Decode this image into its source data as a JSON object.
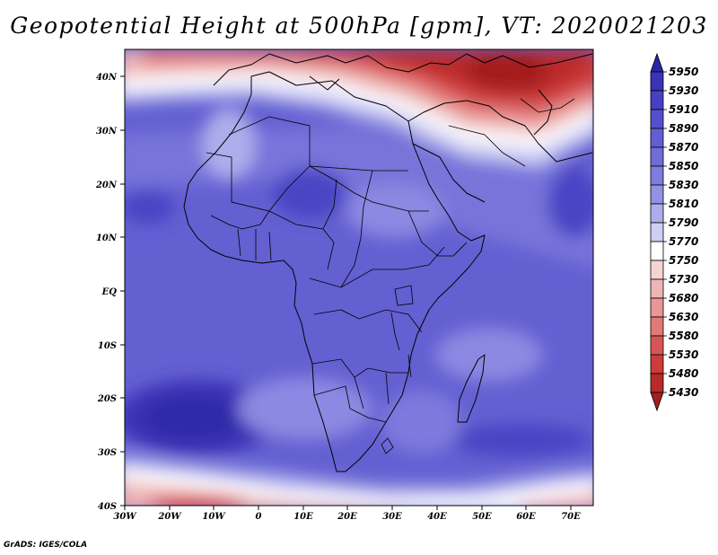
{
  "title": "Geopotential Height at 500hPa [gpm], VT: 2020021203",
  "credit": "GrADS: IGES/COLA",
  "map": {
    "region": "Africa",
    "variable": "500hPa geopotential height",
    "lat_labels": [
      "40N",
      "30N",
      "20N",
      "10N",
      "EQ",
      "10S",
      "20S",
      "30S",
      "40S"
    ],
    "lon_labels": [
      "30W",
      "20W",
      "10W",
      "0",
      "10E",
      "20E",
      "30E",
      "40E",
      "50E",
      "60E",
      "70E"
    ],
    "lat_range": [
      -40,
      45
    ],
    "lon_range": [
      -30,
      75
    ]
  },
  "colorbar": {
    "levels": [
      "5950",
      "5930",
      "5910",
      "5890",
      "5870",
      "5850",
      "5830",
      "5810",
      "5790",
      "5770",
      "5750",
      "5730",
      "5680",
      "5630",
      "5580",
      "5530",
      "5480",
      "5430"
    ],
    "colors": [
      "#2a26a6",
      "#3a33b6",
      "#4740c2",
      "#5450cc",
      "#625fd3",
      "#6f6dd8",
      "#7f7ddd",
      "#9391e4",
      "#aeadec",
      "#cfcff4",
      "#ffffff",
      "#f6d3d3",
      "#efb4b4",
      "#e99696",
      "#e37878",
      "#d95555",
      "#cd3b3b",
      "#b92a2a",
      "#a41f1f"
    ]
  }
}
